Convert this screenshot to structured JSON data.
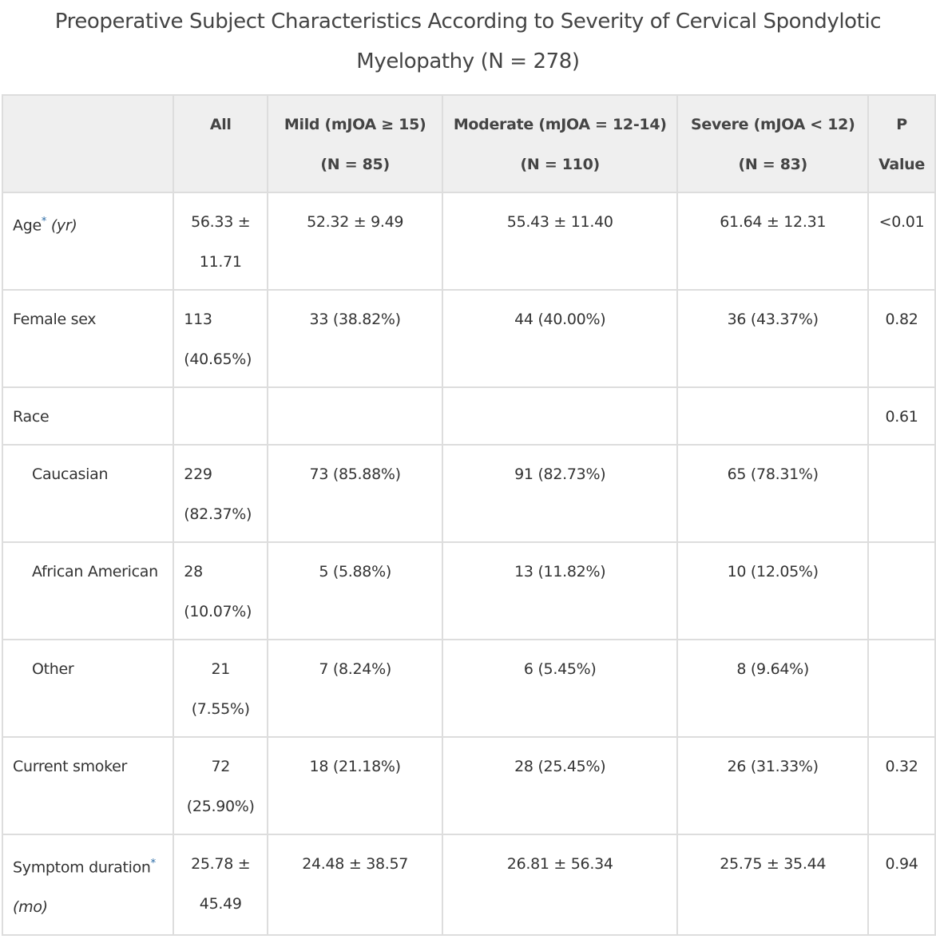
{
  "title": "Preoperative Subject Characteristics According to Severity of Cervical Spondylotic Myelopathy (N = 278)",
  "table": {
    "headers": [
      "",
      "All",
      "Mild (mJOA ≥ 15) (N = 85)",
      "Moderate (mJOA = 12-14) (N = 110)",
      "Severe (mJOA < 12) (N = 83)",
      "P Value"
    ],
    "rows": [
      {
        "label": "Age",
        "footnote": "*",
        "unit": "(yr)",
        "all": "56.33 ± 11.71",
        "mild": "52.32 ± 9.49",
        "moderate": "55.43 ± 11.40",
        "severe": "61.64 ± 12.31",
        "p": "<0.01"
      },
      {
        "label": "Female sex",
        "all": "113 (40.65%)",
        "mild": "33 (38.82%)",
        "moderate": "44 (40.00%)",
        "severe": "36 (43.37%)",
        "p": "0.82"
      },
      {
        "label": "Race",
        "all": "",
        "mild": "",
        "moderate": "",
        "severe": "",
        "p": "0.61"
      },
      {
        "label": "Caucasian",
        "all": "229 (82.37%)",
        "mild": "73 (85.88%)",
        "moderate": "91 (82.73%)",
        "severe": "65 (78.31%)",
        "p": ""
      },
      {
        "label": "African American",
        "all": "28 (10.07%)",
        "mild": "5 (5.88%)",
        "moderate": "13 (11.82%)",
        "severe": "10 (12.05%)",
        "p": ""
      },
      {
        "label": "Other",
        "all": "21 (7.55%)",
        "mild": "7 (8.24%)",
        "moderate": "6 (5.45%)",
        "severe": "8 (9.64%)",
        "p": ""
      },
      {
        "label": "Current smoker",
        "all": "72 (25.90%)",
        "mild": "18 (21.18%)",
        "moderate": "28 (25.45%)",
        "severe": "26 (31.33%)",
        "p": "0.32"
      },
      {
        "label": "Symptom duration",
        "footnote": "*",
        "unit": "(mo)",
        "all": "25.78 ± 45.49",
        "mild": "24.48 ± 38.57",
        "moderate": "26.81 ± 56.34",
        "severe": "25.75 ± 35.44",
        "p": "0.94"
      }
    ]
  }
}
